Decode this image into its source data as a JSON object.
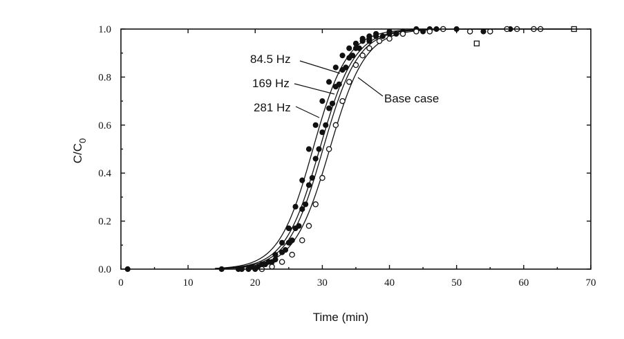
{
  "chart_data": {
    "type": "scatter",
    "title": "",
    "xlabel": "Time (min)",
    "ylabel": "C/C0",
    "ylabel_main": "C/C",
    "ylabel_sub": "0",
    "xlim": [
      0,
      70
    ],
    "ylim": [
      0,
      1.0
    ],
    "xticks": [
      0,
      10,
      20,
      30,
      40,
      50,
      60,
      70
    ],
    "yticks": [
      0.0,
      0.2,
      0.4,
      0.6,
      0.8,
      1.0
    ],
    "ytick_labels": [
      "0.0",
      "0.2",
      "0.4",
      "0.6",
      "0.8",
      "1.0"
    ],
    "grid": false,
    "legend": "none",
    "series": [
      {
        "label": "84.5 Hz",
        "marker": "filled-circle",
        "fit": {
          "x50": 28.6,
          "width": 2.55
        },
        "x": [
          1,
          15,
          17.5,
          19,
          20.5,
          22,
          23,
          24,
          25,
          26,
          27,
          28,
          29,
          30,
          31,
          32,
          33,
          34,
          35,
          36,
          37,
          38,
          40,
          42,
          44,
          47,
          50
        ],
        "y": [
          0.0,
          0.0,
          0.0,
          0.0,
          0.01,
          0.03,
          0.06,
          0.11,
          0.17,
          0.26,
          0.37,
          0.5,
          0.6,
          0.7,
          0.78,
          0.84,
          0.89,
          0.92,
          0.94,
          0.96,
          0.97,
          0.98,
          0.99,
          0.99,
          1.0,
          1.0,
          1.0
        ]
      },
      {
        "label": "169 Hz",
        "marker": "filled-circle",
        "fit": {
          "x50": 29.6,
          "width": 2.6
        },
        "x": [
          18,
          19.5,
          21,
          22.5,
          24,
          25,
          26,
          27,
          28,
          29,
          30,
          31,
          32,
          33,
          34,
          35,
          36,
          37,
          38,
          40,
          42,
          45,
          48,
          55,
          58
        ],
        "y": [
          0.0,
          0.01,
          0.02,
          0.03,
          0.07,
          0.11,
          0.17,
          0.25,
          0.35,
          0.46,
          0.57,
          0.67,
          0.76,
          0.83,
          0.88,
          0.92,
          0.95,
          0.96,
          0.97,
          0.98,
          0.99,
          0.99,
          1.0,
          0.99,
          1.0
        ]
      },
      {
        "label": "281 Hz",
        "marker": "filled-circle",
        "fit": {
          "x50": 30.1,
          "width": 2.6
        },
        "x": [
          20,
          21.5,
          23,
          24.5,
          25.5,
          26.5,
          27.5,
          28.5,
          29.5,
          30.5,
          31.5,
          32.5,
          33.5,
          34.5,
          35.5,
          37,
          39,
          41,
          44,
          46,
          54
        ],
        "y": [
          0.0,
          0.02,
          0.04,
          0.08,
          0.12,
          0.18,
          0.27,
          0.38,
          0.5,
          0.6,
          0.69,
          0.77,
          0.84,
          0.89,
          0.92,
          0.95,
          0.97,
          0.98,
          0.99,
          1.0,
          0.99
        ]
      },
      {
        "label": "Base case",
        "marker": "open-circle",
        "fit": {
          "x50": 31.1,
          "width": 2.65
        },
        "x": [
          21,
          22.5,
          24,
          25.5,
          27,
          28,
          29,
          30,
          31,
          32,
          33,
          34,
          35,
          36,
          37,
          38.5,
          40,
          42,
          44,
          46,
          48,
          52,
          55,
          57.5,
          59,
          61.5,
          62.5
        ],
        "y": [
          0.0,
          0.01,
          0.03,
          0.06,
          0.12,
          0.18,
          0.27,
          0.38,
          0.5,
          0.6,
          0.7,
          0.78,
          0.85,
          0.89,
          0.92,
          0.95,
          0.96,
          0.98,
          0.99,
          0.99,
          1.0,
          0.99,
          0.99,
          1.0,
          1.0,
          1.0,
          1.0
        ]
      },
      {
        "label": "",
        "marker": "open-square",
        "fit": null,
        "x": [
          53,
          67.5
        ],
        "y": [
          0.94,
          1.0
        ]
      }
    ],
    "annotations": [
      {
        "text": "84.5  Hz",
        "target_series": 0
      },
      {
        "text": "169  Hz",
        "target_series": 1
      },
      {
        "text": "281  Hz",
        "target_series": 2
      },
      {
        "text": "Base case",
        "target_series": 3
      }
    ]
  }
}
